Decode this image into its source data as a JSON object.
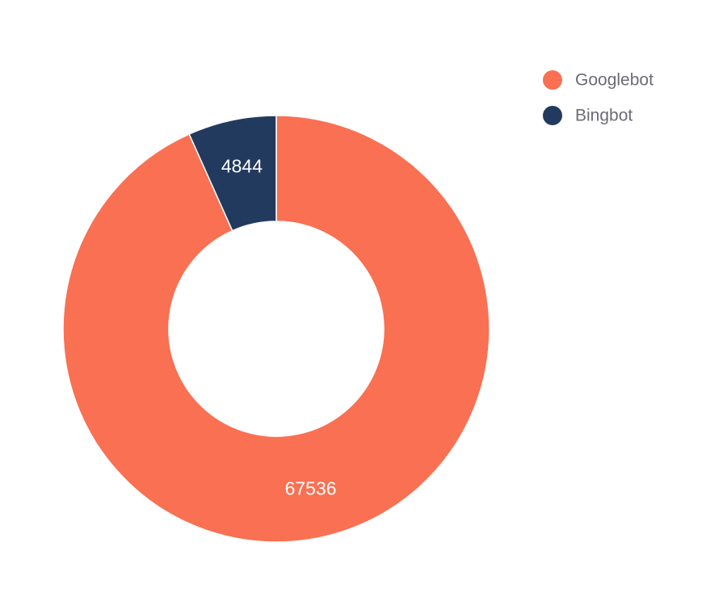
{
  "chart_data": {
    "type": "pie",
    "donut": true,
    "categories": [
      "Googlebot",
      "Bingbot"
    ],
    "values": [
      67536,
      4844
    ],
    "colors": [
      "#f97052",
      "#223a5e"
    ]
  }
}
